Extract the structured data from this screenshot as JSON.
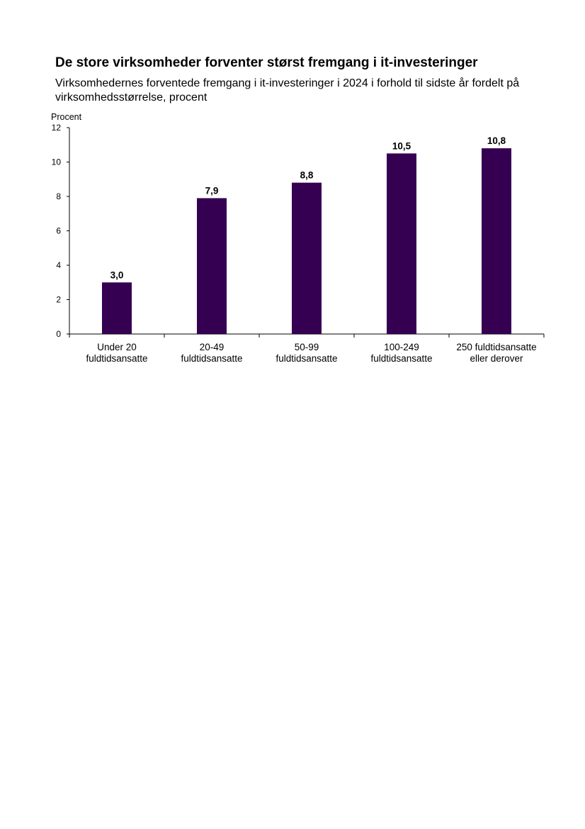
{
  "chart_data": {
    "type": "bar",
    "title": "De store virksomheder forventer størst fremgang i it-investeringer",
    "subtitle": "Virksomhedernes forventede fremgang i it-investeringer i 2024 i forhold til sidste år fordelt på virksomhedsstørrelse, procent",
    "ylabel": "Procent",
    "xlabel": "",
    "ylim": [
      0,
      12
    ],
    "yticks": [
      0,
      2,
      4,
      6,
      8,
      10,
      12
    ],
    "grid": false,
    "legend": "none",
    "bar_color": "#350052",
    "categories": [
      [
        "Under 20",
        "fuldtidsansatte"
      ],
      [
        "20-49",
        "fuldtidsansatte"
      ],
      [
        "50-99",
        "fuldtidsansatte"
      ],
      [
        "100-249",
        "fuldtidsansatte"
      ],
      [
        "250 fuldtidsansatte",
        "eller derover"
      ]
    ],
    "values": [
      3.0,
      7.9,
      8.8,
      10.5,
      10.8
    ],
    "data_labels": [
      "3,0",
      "7,9",
      "8,8",
      "10,5",
      "10,8"
    ]
  }
}
